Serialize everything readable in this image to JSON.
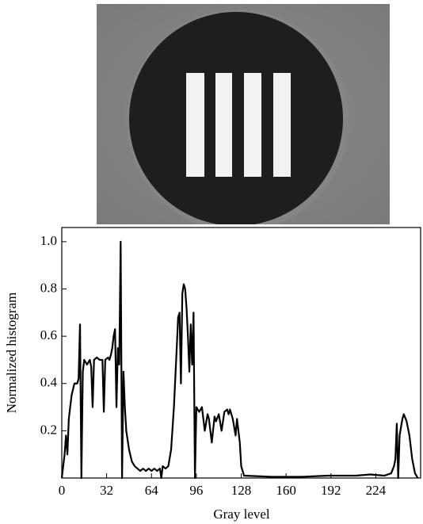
{
  "chart_data": {
    "type": "line",
    "x_label": "Gray level",
    "y_label": "Normalized histogram",
    "xlim": [
      0,
      256
    ],
    "ylim": [
      0,
      1.06
    ],
    "xticks": [
      0,
      32,
      64,
      96,
      128,
      160,
      192,
      224
    ],
    "yticks": [
      0.2,
      0.4,
      0.6,
      0.8,
      {
        "value": 1,
        "label": "1.0"
      }
    ],
    "color": "#000000",
    "x": [
      0,
      1,
      2,
      3,
      4,
      5,
      7,
      9,
      11,
      12,
      13,
      14,
      15,
      16,
      18,
      20,
      21,
      22,
      23,
      25,
      27,
      29,
      30,
      31,
      33,
      34,
      35,
      36,
      37,
      38,
      39,
      40,
      41,
      42,
      43,
      44,
      45,
      46,
      48,
      50,
      52,
      54,
      56,
      58,
      60,
      62,
      64,
      66,
      68,
      70,
      71,
      72,
      74,
      76,
      78,
      80,
      82,
      83,
      84,
      85,
      86,
      87,
      88,
      89,
      90,
      91,
      92,
      93,
      94,
      95,
      96,
      98,
      100,
      102,
      104,
      105,
      107,
      109,
      110,
      112,
      114,
      116,
      118,
      119,
      120,
      122,
      124,
      125,
      126,
      127,
      128,
      130,
      150,
      170,
      190,
      210,
      220,
      230,
      235,
      237,
      238,
      239,
      240,
      241,
      243,
      244,
      246,
      248,
      250,
      252,
      254
    ],
    "values": [
      0,
      0.05,
      0.1,
      0.18,
      0.1,
      0.25,
      0.35,
      0.4,
      0.4,
      0.42,
      0.65,
      0,
      0.45,
      0.5,
      0.48,
      0.5,
      0.47,
      0.3,
      0.5,
      0.51,
      0.5,
      0.5,
      0.28,
      0.5,
      0.51,
      0.5,
      0.52,
      0.55,
      0.6,
      0.63,
      0.3,
      0.55,
      0.48,
      1.0,
      0,
      0.45,
      0.3,
      0.2,
      0.12,
      0.07,
      0.05,
      0.04,
      0.03,
      0.04,
      0.03,
      0.04,
      0.03,
      0.04,
      0.03,
      0.04,
      0,
      0.05,
      0.04,
      0.05,
      0.12,
      0.3,
      0.55,
      0.68,
      0.7,
      0.4,
      0.78,
      0.82,
      0.8,
      0.72,
      0.6,
      0.45,
      0.65,
      0.48,
      0.7,
      0,
      0.3,
      0.28,
      0.3,
      0.2,
      0.27,
      0.25,
      0.15,
      0.26,
      0.24,
      0.27,
      0.2,
      0.28,
      0.29,
      0.27,
      0.29,
      0.25,
      0.18,
      0.25,
      0.2,
      0.15,
      0.05,
      0.01,
      0.005,
      0.005,
      0.01,
      0.01,
      0.015,
      0.01,
      0.02,
      0.05,
      0.08,
      0.23,
      0,
      0.18,
      0.25,
      0.27,
      0.24,
      0.18,
      0.08,
      0.02,
      0
    ]
  }
}
